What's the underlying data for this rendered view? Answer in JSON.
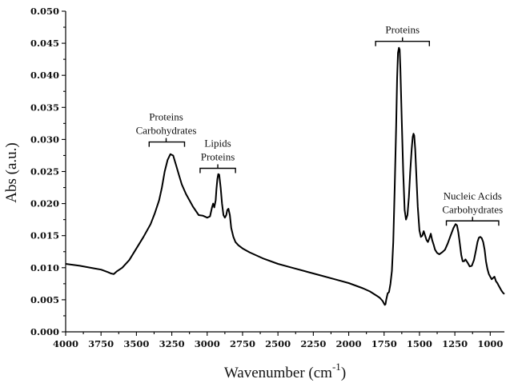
{
  "chart_data": {
    "type": "line",
    "title": "",
    "xlabel": "Wavenumber (cm",
    "xlabel_sup": "-1",
    "xlabel_close": ")",
    "ylabel": "Abs (a.u.)",
    "xlim": [
      4000,
      900
    ],
    "x_reversed": true,
    "ylim": [
      0,
      0.05
    ],
    "grid": false,
    "legend": "none",
    "x_ticks": [
      4000,
      3750,
      3500,
      3250,
      3000,
      2750,
      2500,
      2250,
      2000,
      1750,
      1500,
      1250,
      1000
    ],
    "x_tick_labels": [
      "4000",
      "3750",
      "3500",
      "3250",
      "3000",
      "2750",
      "2500",
      "2250",
      "2000",
      "1750",
      "1500",
      "1250",
      "1000"
    ],
    "y_ticks": [
      0,
      0.005,
      0.01,
      0.015,
      0.02,
      0.025,
      0.03,
      0.035,
      0.04,
      0.045,
      0.05
    ],
    "y_tick_labels": [
      "0.000",
      "0.005",
      "0.010",
      "0.015",
      "0.020",
      "0.025",
      "0.030",
      "0.035",
      "0.040",
      "0.045",
      "0.050"
    ],
    "series": [
      {
        "x": [
          4000,
          3900,
          3800,
          3750,
          3700,
          3680,
          3660,
          3640,
          3600,
          3550,
          3500,
          3450,
          3400,
          3370,
          3340,
          3320,
          3300,
          3280,
          3260,
          3240,
          3220,
          3200,
          3180,
          3150,
          3100,
          3060,
          3030,
          3000,
          2980,
          2965,
          2958,
          2950,
          2940,
          2935,
          2928,
          2922,
          2915,
          2905,
          2895,
          2885,
          2875,
          2865,
          2858,
          2850,
          2840,
          2830,
          2815,
          2800,
          2780,
          2750,
          2700,
          2600,
          2500,
          2400,
          2300,
          2200,
          2100,
          2000,
          1900,
          1850,
          1800,
          1780,
          1760,
          1750,
          1745,
          1740,
          1735,
          1725,
          1715,
          1705,
          1695,
          1685,
          1675,
          1665,
          1658,
          1652,
          1645,
          1640,
          1635,
          1625,
          1615,
          1605,
          1595,
          1585,
          1575,
          1565,
          1555,
          1548,
          1542,
          1537,
          1530,
          1522,
          1512,
          1500,
          1490,
          1480,
          1470,
          1460,
          1450,
          1440,
          1430,
          1420,
          1410,
          1400,
          1390,
          1375,
          1360,
          1340,
          1320,
          1300,
          1280,
          1260,
          1245,
          1235,
          1225,
          1215,
          1205,
          1195,
          1185,
          1175,
          1160,
          1145,
          1130,
          1115,
          1100,
          1090,
          1080,
          1070,
          1060,
          1050,
          1040,
          1030,
          1020,
          1010,
          1000,
          990,
          980,
          970,
          960,
          950,
          940,
          930,
          920,
          910,
          900
        ],
        "y": [
          0.0106,
          0.0103,
          0.0099,
          0.0097,
          0.0093,
          0.0091,
          0.009,
          0.0094,
          0.01,
          0.0112,
          0.013,
          0.0148,
          0.0168,
          0.0185,
          0.0205,
          0.0225,
          0.025,
          0.0268,
          0.0277,
          0.0275,
          0.026,
          0.0245,
          0.023,
          0.0215,
          0.0195,
          0.0182,
          0.0181,
          0.0178,
          0.018,
          0.0195,
          0.02,
          0.0194,
          0.0205,
          0.0222,
          0.0238,
          0.0246,
          0.0245,
          0.0225,
          0.02,
          0.0182,
          0.0178,
          0.0182,
          0.019,
          0.0192,
          0.0182,
          0.0162,
          0.0148,
          0.014,
          0.0135,
          0.013,
          0.0124,
          0.0114,
          0.0106,
          0.01,
          0.0094,
          0.0088,
          0.0082,
          0.0076,
          0.0068,
          0.0063,
          0.0056,
          0.0053,
          0.0048,
          0.0044,
          0.0042,
          0.0043,
          0.005,
          0.006,
          0.0062,
          0.0075,
          0.0095,
          0.014,
          0.0225,
          0.032,
          0.0395,
          0.0435,
          0.0443,
          0.044,
          0.041,
          0.033,
          0.025,
          0.019,
          0.0175,
          0.0182,
          0.021,
          0.025,
          0.0285,
          0.0304,
          0.0309,
          0.0306,
          0.0285,
          0.0245,
          0.0195,
          0.0158,
          0.0148,
          0.015,
          0.0157,
          0.015,
          0.0143,
          0.014,
          0.0146,
          0.0153,
          0.0143,
          0.0136,
          0.0128,
          0.0123,
          0.0121,
          0.0124,
          0.0128,
          0.0138,
          0.015,
          0.0162,
          0.0168,
          0.0166,
          0.0155,
          0.0138,
          0.012,
          0.011,
          0.011,
          0.0113,
          0.0108,
          0.0102,
          0.0103,
          0.0112,
          0.0128,
          0.014,
          0.0147,
          0.0148,
          0.0146,
          0.014,
          0.0128,
          0.011,
          0.0098,
          0.009,
          0.0086,
          0.0082,
          0.0084,
          0.0086,
          0.0079,
          0.0076,
          0.0072,
          0.0068,
          0.0064,
          0.0061,
          0.0059
        ]
      }
    ],
    "annotations": [
      {
        "lines": [
          "Proteins",
          "Carbohydrates"
        ],
        "x_from": 3410,
        "x_to": 3160,
        "x_center": 3290,
        "y": 0.0296
      },
      {
        "lines": [
          "Lipids",
          "Proteins"
        ],
        "x_from": 3050,
        "x_to": 2800,
        "x_center": 2925,
        "y": 0.0255
      },
      {
        "lines": [
          "Proteins"
        ],
        "x_from": 1810,
        "x_to": 1430,
        "x_center": 1620,
        "y": 0.0453
      },
      {
        "lines": [
          "Nucleic Acids",
          "Carbohydrates"
        ],
        "x_from": 1310,
        "x_to": 940,
        "x_center": 1125,
        "y": 0.0173
      }
    ]
  }
}
